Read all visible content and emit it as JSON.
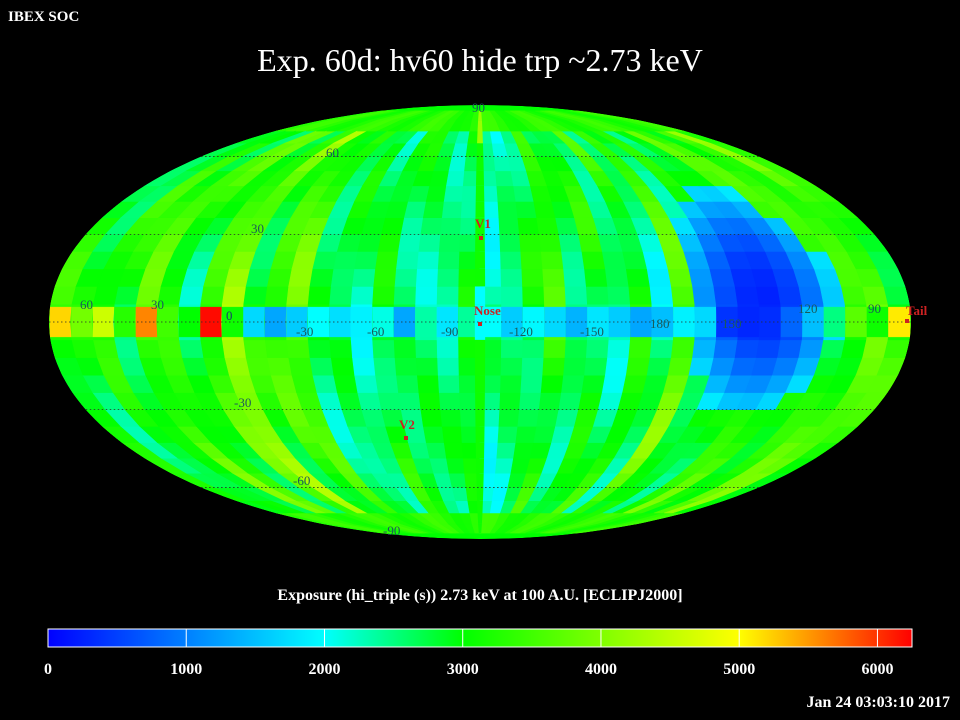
{
  "header": {
    "org": "IBEX SOC",
    "title": "Exp.   60d: hv60 hide trp ~2.73 keV"
  },
  "chart_data": {
    "type": "heatmap",
    "projection": "mollweide",
    "grid": true,
    "lat_labels_left": [
      "90",
      "60",
      "30",
      "0",
      "-30",
      "-60",
      "-90"
    ],
    "lat_values": [
      90,
      60,
      30,
      0,
      -30,
      -60,
      -90
    ],
    "lon_labels_equator": [
      "60",
      "30",
      "0",
      "-30",
      "-60",
      "-90",
      "-120",
      "-150",
      "180",
      "150",
      "120",
      "90"
    ],
    "lon_values_equator": [
      60,
      30,
      0,
      -30,
      -60,
      -90,
      -120,
      -150,
      180,
      150,
      120,
      90
    ],
    "markers": [
      {
        "label": "V1",
        "lon": -105,
        "lat": 35,
        "color": "#cc2222"
      },
      {
        "label": "Nose",
        "lon": -105,
        "lat": 0,
        "color": "#cc2222"
      },
      {
        "label": "V2",
        "lon": -75,
        "lat": -33,
        "color": "#cc2222"
      },
      {
        "label": "Tail",
        "lon": 75,
        "lat": 0,
        "color": "#cc2222"
      }
    ],
    "colorbar": {
      "title": "Exposure (hi_triple (s))  2.73 keV at 100 A.U. [ECLIPJ2000]",
      "min": 0,
      "max": 6250,
      "ticks": [
        "0",
        "1000",
        "2000",
        "3000",
        "4000",
        "5000",
        "6000"
      ],
      "tick_values": [
        0,
        1000,
        2000,
        3000,
        4000,
        5000,
        6000
      ]
    },
    "strip_values": [
      5200,
      3900,
      4600,
      3300,
      5600,
      3500,
      3000,
      6200,
      3100,
      1700,
      1300,
      1600,
      2000,
      1750,
      1900,
      2100,
      1300,
      2350,
      1800,
      2400,
      2000,
      1600,
      1950,
      1700,
      1400,
      1800,
      1600,
      1300,
      1500,
      1900,
      1700,
      400,
      300,
      350,
      800,
      1500,
      2500,
      3700,
      3100,
      5100
    ],
    "column_profile": [
      3100,
      2800,
      3200,
      2900,
      3600,
      3300,
      2700,
      3500,
      4100,
      3000,
      3400,
      3600,
      2600,
      2800,
      2400,
      3000,
      2700,
      2600,
      2500,
      2900,
      2300,
      2500,
      2800,
      3300,
      2600,
      3000,
      2500,
      3200,
      2400,
      3700,
      2800,
      3200,
      2900,
      3300,
      3600,
      3200,
      3100,
      3400,
      3700,
      3200
    ],
    "low_region": {
      "lon_center": 120,
      "lat_center": 8,
      "value": 250
    }
  },
  "footer": {
    "timestamp": "Jan 24 03:03:10 2017"
  }
}
